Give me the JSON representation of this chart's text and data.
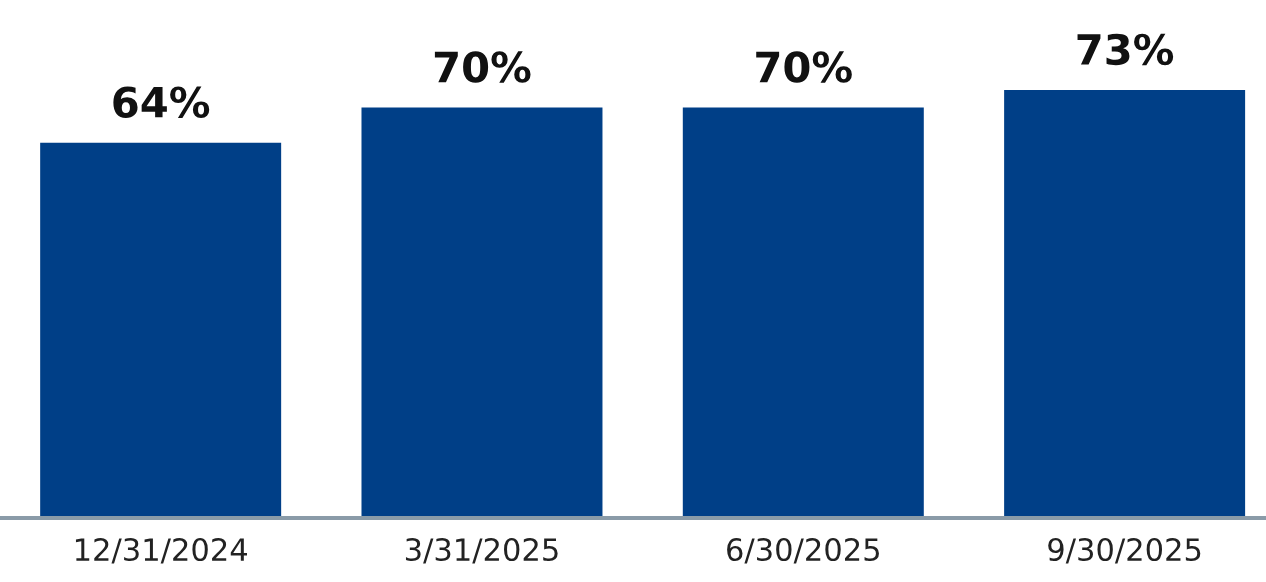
{
  "chart_data": {
    "type": "bar",
    "categories": [
      "12/31/2024",
      "3/31/2025",
      "6/30/2025",
      "9/30/2025"
    ],
    "values": [
      64,
      70,
      70,
      73
    ],
    "value_labels": [
      "64%",
      "70%",
      "70%",
      "73%"
    ],
    "color": "#003f87",
    "grid": false,
    "legend": false,
    "tick_labels": "x"
  }
}
